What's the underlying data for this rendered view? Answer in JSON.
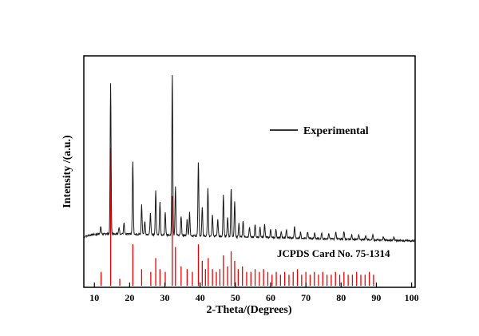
{
  "chart_data": {
    "type": "line",
    "title": "",
    "xlabel": "2-Theta/(Degrees)",
    "ylabel": "Intensity /(a.u.)",
    "xlim": [
      7,
      101
    ],
    "x_ticks": [
      10,
      20,
      30,
      40,
      50,
      60,
      70,
      80,
      90,
      100
    ],
    "grid": false,
    "legend_position": "upper-right-inside",
    "legend": [
      {
        "label": "Experimental",
        "color": "#1a1a1a"
      }
    ],
    "annotation": "JCPDS Card No. 75-1314",
    "series": [
      {
        "name": "Experimental",
        "type": "xrd-pattern",
        "color": "#1a1a1a",
        "peaks": [
          [
            11.8,
            0.05
          ],
          [
            14.6,
            0.92
          ],
          [
            17.0,
            0.04
          ],
          [
            18.4,
            0.07
          ],
          [
            20.9,
            0.45
          ],
          [
            23.4,
            0.18
          ],
          [
            24.3,
            0.08
          ],
          [
            25.9,
            0.13
          ],
          [
            27.4,
            0.27
          ],
          [
            28.6,
            0.2
          ],
          [
            30.1,
            0.14
          ],
          [
            32.1,
            1.0
          ],
          [
            33.0,
            0.3
          ],
          [
            34.6,
            0.12
          ],
          [
            36.3,
            0.1
          ],
          [
            37.0,
            0.14
          ],
          [
            39.5,
            0.46
          ],
          [
            40.6,
            0.18
          ],
          [
            42.2,
            0.3
          ],
          [
            43.5,
            0.13
          ],
          [
            45.0,
            0.1
          ],
          [
            46.6,
            0.26
          ],
          [
            47.8,
            0.12
          ],
          [
            48.8,
            0.3
          ],
          [
            49.8,
            0.22
          ],
          [
            51.0,
            0.08
          ],
          [
            52.2,
            0.1
          ],
          [
            54.0,
            0.06
          ],
          [
            55.6,
            0.08
          ],
          [
            57.0,
            0.06
          ],
          [
            58.3,
            0.08
          ],
          [
            60.0,
            0.05
          ],
          [
            61.5,
            0.05
          ],
          [
            63.0,
            0.04
          ],
          [
            64.5,
            0.05
          ],
          [
            66.8,
            0.07
          ],
          [
            68.5,
            0.04
          ],
          [
            70.5,
            0.04
          ],
          [
            72.5,
            0.04
          ],
          [
            74.5,
            0.04
          ],
          [
            76.5,
            0.03
          ],
          [
            78.5,
            0.04
          ],
          [
            80.8,
            0.05
          ],
          [
            83.0,
            0.03
          ],
          [
            85.0,
            0.03
          ],
          [
            87.0,
            0.03
          ],
          [
            89.0,
            0.03
          ],
          [
            92.0,
            0.02
          ],
          [
            95.0,
            0.02
          ]
        ]
      },
      {
        "name": "JCPDS Card No. 75-1314",
        "type": "stick",
        "color": "#ee0000",
        "sticks": [
          [
            11.9,
            0.1
          ],
          [
            14.6,
            1.0
          ],
          [
            17.2,
            0.05
          ],
          [
            20.9,
            0.3
          ],
          [
            23.4,
            0.12
          ],
          [
            26.0,
            0.1
          ],
          [
            27.4,
            0.2
          ],
          [
            28.6,
            0.12
          ],
          [
            30.1,
            0.1
          ],
          [
            32.1,
            0.65
          ],
          [
            33.0,
            0.28
          ],
          [
            34.6,
            0.14
          ],
          [
            36.3,
            0.12
          ],
          [
            37.8,
            0.1
          ],
          [
            39.5,
            0.3
          ],
          [
            40.6,
            0.18
          ],
          [
            41.5,
            0.12
          ],
          [
            42.3,
            0.2
          ],
          [
            43.5,
            0.12
          ],
          [
            44.6,
            0.1
          ],
          [
            45.6,
            0.12
          ],
          [
            46.6,
            0.22
          ],
          [
            47.8,
            0.14
          ],
          [
            48.8,
            0.25
          ],
          [
            49.8,
            0.18
          ],
          [
            50.8,
            0.12
          ],
          [
            52.0,
            0.14
          ],
          [
            53.2,
            0.1
          ],
          [
            54.4,
            0.1
          ],
          [
            55.6,
            0.12
          ],
          [
            56.8,
            0.1
          ],
          [
            58.0,
            0.12
          ],
          [
            59.2,
            0.1
          ],
          [
            60.4,
            0.08
          ],
          [
            61.6,
            0.1
          ],
          [
            62.8,
            0.08
          ],
          [
            64.0,
            0.1
          ],
          [
            65.2,
            0.08
          ],
          [
            66.4,
            0.1
          ],
          [
            67.6,
            0.12
          ],
          [
            68.8,
            0.08
          ],
          [
            70.0,
            0.1
          ],
          [
            71.2,
            0.08
          ],
          [
            72.4,
            0.1
          ],
          [
            73.6,
            0.08
          ],
          [
            74.8,
            0.1
          ],
          [
            76.0,
            0.08
          ],
          [
            77.2,
            0.08
          ],
          [
            78.4,
            0.1
          ],
          [
            79.6,
            0.08
          ],
          [
            80.8,
            0.1
          ],
          [
            82.0,
            0.08
          ],
          [
            83.2,
            0.08
          ],
          [
            84.4,
            0.1
          ],
          [
            85.6,
            0.08
          ],
          [
            86.8,
            0.08
          ],
          [
            88.0,
            0.1
          ],
          [
            89.2,
            0.08
          ]
        ]
      }
    ]
  }
}
